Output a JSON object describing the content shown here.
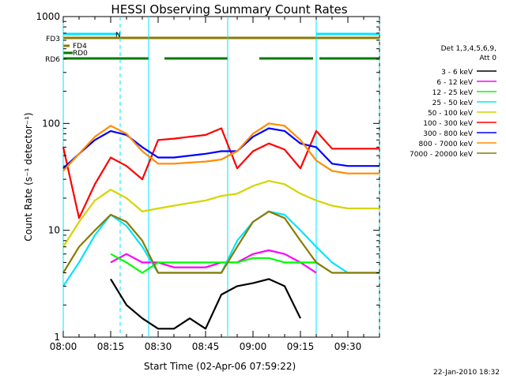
{
  "chart_data": {
    "type": "line",
    "title": "HESSI Observing Summary Count Rates",
    "xlabel": "Start Time (02-Apr-06 07:59:22)",
    "ylabel": "Count Rate (s⁻¹ detector⁻¹)",
    "y_scale": "log",
    "ylim": [
      1,
      1000
    ],
    "xlim": [
      "08:00",
      "09:40"
    ],
    "x_ticks": [
      "08:00",
      "08:15",
      "08:30",
      "08:45",
      "09:00",
      "09:15",
      "09:30"
    ],
    "y_ticks": [
      "1",
      "10",
      "100",
      "1000"
    ],
    "legend_header": [
      "Det 1,3,4,5,6,9,",
      "Att 0"
    ],
    "legend_position": "right",
    "footer_date": "22-Jan-2010 18:32",
    "flag_bars": [
      {
        "label": "N",
        "color": "#00e5ff",
        "segments": [
          [
            "08:00",
            "08:18"
          ],
          [
            "09:20",
            "09:40"
          ]
        ]
      },
      {
        "label": "FD3",
        "color": "#8b7a00",
        "segments": [
          [
            "08:00",
            "09:40"
          ]
        ]
      },
      {
        "label": "FD4",
        "color": "#8b7a00",
        "segments": [
          [
            "08:00",
            "08:02"
          ]
        ]
      },
      {
        "label": "RD0",
        "color": "#007a00",
        "segments": [
          [
            "08:00",
            "08:03"
          ]
        ]
      },
      {
        "label": "RD6",
        "color": "#007a00",
        "segments": [
          [
            "08:00",
            "08:27"
          ],
          [
            "08:32",
            "08:52"
          ],
          [
            "09:02",
            "09:19"
          ],
          [
            "09:21",
            "09:40"
          ]
        ]
      }
    ],
    "vlines": {
      "solid": [
        "08:00",
        "08:27",
        "08:52",
        "09:20"
      ],
      "dashed": [
        "08:18",
        "09:40"
      ]
    },
    "series": [
      {
        "name": "3 - 6 keV",
        "color": "#000000",
        "x": [
          "08:00",
          "08:10",
          "08:15",
          "08:20",
          "08:25",
          "08:30",
          "08:35",
          "08:40",
          "08:45",
          "08:50",
          "08:55",
          "09:00",
          "09:05",
          "09:10",
          "09:15",
          "09:20",
          "09:25",
          "09:30",
          "09:35",
          "09:40"
        ],
        "values": [
          null,
          null,
          3.5,
          2,
          1.5,
          1.2,
          1.2,
          1.5,
          1.2,
          2.5,
          3,
          3.2,
          3.5,
          3,
          1.5,
          null,
          null,
          null,
          null,
          null
        ]
      },
      {
        "name": "6 - 12 keV",
        "color": "#ff00ff",
        "x": [
          "08:00",
          "08:10",
          "08:15",
          "08:20",
          "08:25",
          "08:30",
          "08:35",
          "08:40",
          "08:45",
          "08:50",
          "08:55",
          "09:00",
          "09:05",
          "09:10",
          "09:15",
          "09:20",
          "09:25",
          "09:30",
          "09:35",
          "09:40"
        ],
        "values": [
          null,
          null,
          5,
          6,
          5,
          5,
          4.5,
          4.5,
          4.5,
          5,
          5,
          6,
          6.5,
          6,
          5,
          4,
          null,
          null,
          null,
          null
        ]
      },
      {
        "name": "12 - 25 keV",
        "color": "#00ff00",
        "x": [
          "08:00",
          "08:10",
          "08:15",
          "08:20",
          "08:25",
          "08:30",
          "08:35",
          "08:40",
          "08:45",
          "08:50",
          "08:55",
          "09:00",
          "09:05",
          "09:10",
          "09:15",
          "09:20",
          "09:25",
          "09:30",
          "09:35",
          "09:40"
        ],
        "values": [
          null,
          null,
          6,
          5,
          4,
          5,
          5,
          5,
          5,
          5,
          5,
          5.5,
          5.5,
          5,
          5,
          5,
          4,
          null,
          null,
          null
        ]
      },
      {
        "name": "25 - 50 keV",
        "color": "#00e5ff",
        "x": [
          "08:00",
          "08:05",
          "08:10",
          "08:15",
          "08:20",
          "08:25",
          "08:30",
          "08:35",
          "08:40",
          "08:45",
          "08:50",
          "08:55",
          "09:00",
          "09:05",
          "09:10",
          "09:15",
          "09:20",
          "09:25",
          "09:30",
          "09:35",
          "09:40"
        ],
        "values": [
          3,
          5,
          9,
          14,
          11,
          7,
          4,
          4,
          4,
          4,
          4,
          8,
          12,
          15,
          14,
          10,
          7,
          5,
          4,
          4,
          4
        ]
      },
      {
        "name": "50 - 100 keV",
        "color": "#d4d400",
        "x": [
          "08:00",
          "08:05",
          "08:10",
          "08:15",
          "08:20",
          "08:25",
          "08:30",
          "08:35",
          "08:40",
          "08:45",
          "08:50",
          "08:55",
          "09:00",
          "09:05",
          "09:10",
          "09:15",
          "09:20",
          "09:25",
          "09:30",
          "09:35",
          "09:40"
        ],
        "values": [
          7,
          12,
          19,
          24,
          20,
          15,
          16,
          17,
          18,
          19,
          21,
          22,
          26,
          29,
          27,
          22,
          19,
          17,
          16,
          16,
          16
        ]
      },
      {
        "name": "100 - 300 keV",
        "color": "#ff0000",
        "x": [
          "08:00",
          "08:05",
          "08:10",
          "08:15",
          "08:20",
          "08:25",
          "08:30",
          "08:35",
          "08:40",
          "08:45",
          "08:50",
          "08:55",
          "09:00",
          "09:05",
          "09:10",
          "09:15",
          "09:20",
          "09:25",
          "09:30",
          "09:35",
          "09:40"
        ],
        "values": [
          60,
          13,
          27,
          48,
          40,
          30,
          70,
          72,
          75,
          78,
          90,
          38,
          55,
          65,
          57,
          38,
          85,
          58,
          58,
          58,
          58
        ]
      },
      {
        "name": "300 - 800 keV",
        "color": "#0000ff",
        "x": [
          "08:00",
          "08:05",
          "08:10",
          "08:15",
          "08:20",
          "08:25",
          "08:30",
          "08:35",
          "08:40",
          "08:45",
          "08:50",
          "08:55",
          "09:00",
          "09:05",
          "09:10",
          "09:15",
          "09:20",
          "09:25",
          "09:30",
          "09:35",
          "09:40"
        ],
        "values": [
          38,
          52,
          70,
          85,
          78,
          60,
          48,
          48,
          50,
          52,
          55,
          55,
          75,
          90,
          85,
          65,
          60,
          42,
          40,
          40,
          40
        ]
      },
      {
        "name": "800 - 7000 keV",
        "color": "#ff8c00",
        "x": [
          "08:00",
          "08:05",
          "08:10",
          "08:15",
          "08:20",
          "08:25",
          "08:30",
          "08:35",
          "08:40",
          "08:45",
          "08:50",
          "08:55",
          "09:00",
          "09:05",
          "09:10",
          "09:15",
          "09:20",
          "09:25",
          "09:30",
          "09:35",
          "09:40"
        ],
        "values": [
          36,
          52,
          75,
          95,
          80,
          55,
          42,
          42,
          43,
          44,
          46,
          55,
          80,
          100,
          95,
          70,
          45,
          36,
          34,
          34,
          34
        ]
      },
      {
        "name": "7000 - 20000 keV",
        "color": "#8b7a00",
        "x": [
          "08:00",
          "08:05",
          "08:10",
          "08:15",
          "08:20",
          "08:25",
          "08:30",
          "08:35",
          "08:40",
          "08:45",
          "08:50",
          "08:55",
          "09:00",
          "09:05",
          "09:10",
          "09:15",
          "09:20",
          "09:25",
          "09:30",
          "09:35",
          "09:40"
        ],
        "values": [
          4,
          7,
          10,
          14,
          12,
          8,
          4,
          4,
          4,
          4,
          4,
          7,
          12,
          15,
          13,
          8,
          5,
          4,
          4,
          4,
          4
        ]
      }
    ]
  }
}
